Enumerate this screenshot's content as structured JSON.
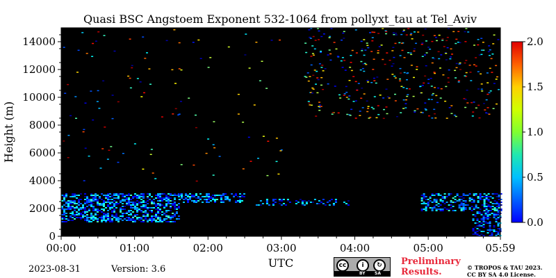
{
  "chart_data": {
    "type": "heatmap",
    "title": "Quasi BSC Angstoem Exponent 532-1064 from pollyxt_tau at Tel_Aviv",
    "xlabel": "UTC",
    "ylabel": "Height (m)",
    "x_ticks": [
      "00:00",
      "01:00",
      "02:00",
      "03:00",
      "04:00",
      "05:00",
      "05:59"
    ],
    "x_range_hours": [
      0,
      5.983
    ],
    "ylim": [
      0,
      15000
    ],
    "y_ticks": [
      0,
      2000,
      4000,
      6000,
      8000,
      10000,
      12000,
      14000
    ],
    "colorbar": {
      "min": 0.0,
      "max": 2.0,
      "ticks": [
        "0.0",
        "0.5",
        "1.0",
        "1.5",
        "2.0"
      ],
      "colormap": "jet"
    },
    "background_color": "#000000",
    "layers": [
      {
        "t_start": 0.0,
        "t_end": 1.6,
        "h_bottom": 1000,
        "h_top": 3100,
        "density": 0.55,
        "value_mean": 0.45
      },
      {
        "t_start": 1.6,
        "t_end": 2.5,
        "h_bottom": 2400,
        "h_top": 3100,
        "density": 0.45,
        "value_mean": 0.45
      },
      {
        "t_start": 2.65,
        "t_end": 3.9,
        "h_bottom": 2200,
        "h_top": 2700,
        "density": 0.3,
        "value_mean": 0.35
      },
      {
        "t_start": 4.9,
        "t_end": 5.983,
        "h_bottom": 1800,
        "h_top": 3100,
        "density": 0.45,
        "value_mean": 0.45
      },
      {
        "t_start": 5.6,
        "t_end": 5.983,
        "h_bottom": 0,
        "h_top": 1800,
        "density": 0.5,
        "value_mean": 0.3
      }
    ],
    "sparse_noise": [
      {
        "t_start": 0.0,
        "t_end": 3.0,
        "h_bottom": 4000,
        "h_top": 15000,
        "count": 120
      },
      {
        "t_start": 3.3,
        "t_end": 5.983,
        "h_bottom": 8500,
        "h_top": 15000,
        "count": 420
      }
    ]
  },
  "footer": {
    "date": "2023-08-31",
    "version": "Version: 3.6",
    "license_badge": {
      "icon": "cc-by-sa-icon",
      "by": "BY",
      "sa": "SA"
    },
    "preliminary_line1": "Preliminary",
    "preliminary_line2": "Results.",
    "copyright_line1": "© TROPOS & TAU 2023.",
    "copyright_line2": "CC BY SA 4.0 License."
  },
  "colors": {
    "preliminary": "#e8283a"
  }
}
